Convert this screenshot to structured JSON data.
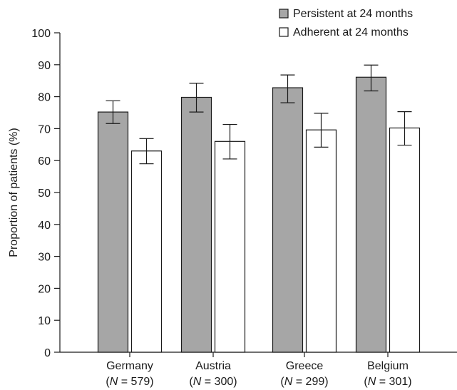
{
  "chart_data": {
    "type": "bar",
    "ylabel": "Proportion of patients (%)",
    "ylim": [
      0,
      100
    ],
    "yticks": [
      0,
      10,
      20,
      30,
      40,
      50,
      60,
      70,
      80,
      90,
      100
    ],
    "grid": false,
    "legend_position": "top-right",
    "categories": [
      {
        "name": "Germany",
        "n": "579"
      },
      {
        "name": "Austria",
        "n": "300"
      },
      {
        "name": "Greece",
        "n": "299"
      },
      {
        "name": "Belgium",
        "n": "301"
      }
    ],
    "series": [
      {
        "name": "Persistent at 24 months",
        "color": "#a6a6a6",
        "values": [
          75.2,
          79.8,
          82.8,
          86.1
        ],
        "error_low": [
          71.6,
          75.2,
          78.1,
          81.8
        ],
        "error_high": [
          78.7,
          84.2,
          86.8,
          89.9
        ]
      },
      {
        "name": "Adherent at 24 months",
        "color": "#ffffff",
        "values": [
          63.0,
          66.0,
          69.6,
          70.2
        ],
        "error_low": [
          59.0,
          60.5,
          64.2,
          64.8
        ],
        "error_high": [
          66.9,
          71.3,
          74.8,
          75.3
        ]
      }
    ]
  }
}
